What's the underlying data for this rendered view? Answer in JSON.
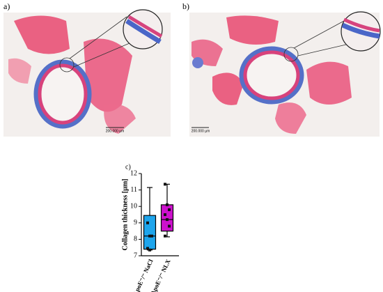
{
  "panel_labels": [
    "a)",
    "b)",
    "c)"
  ],
  "scale_bars": [
    "200.000 µm",
    "200.000 µm"
  ],
  "chart_data": {
    "type": "box",
    "ylabel": "Collagen thickness [µm]",
    "categories": [
      "ApoE⁻/⁻ NaCl",
      "ApoE⁻/⁻ NLX"
    ],
    "colors": [
      "#1ea5ec",
      "#cc11cc"
    ],
    "boxes": [
      {
        "min": 7.35,
        "q1": 7.4,
        "median": 8.2,
        "q3": 9.45,
        "max": 11.15,
        "points": [
          9.0,
          8.2,
          8.2,
          7.45,
          7.35
        ]
      },
      {
        "min": 8.15,
        "q1": 8.5,
        "median": 9.2,
        "q3": 10.1,
        "max": 11.35,
        "points": [
          11.35,
          10.1,
          9.8,
          9.5,
          9.2,
          8.8,
          8.2
        ]
      }
    ],
    "ylim": [
      7,
      12
    ],
    "yticks": [
      7,
      8,
      9,
      10,
      11,
      12
    ]
  }
}
